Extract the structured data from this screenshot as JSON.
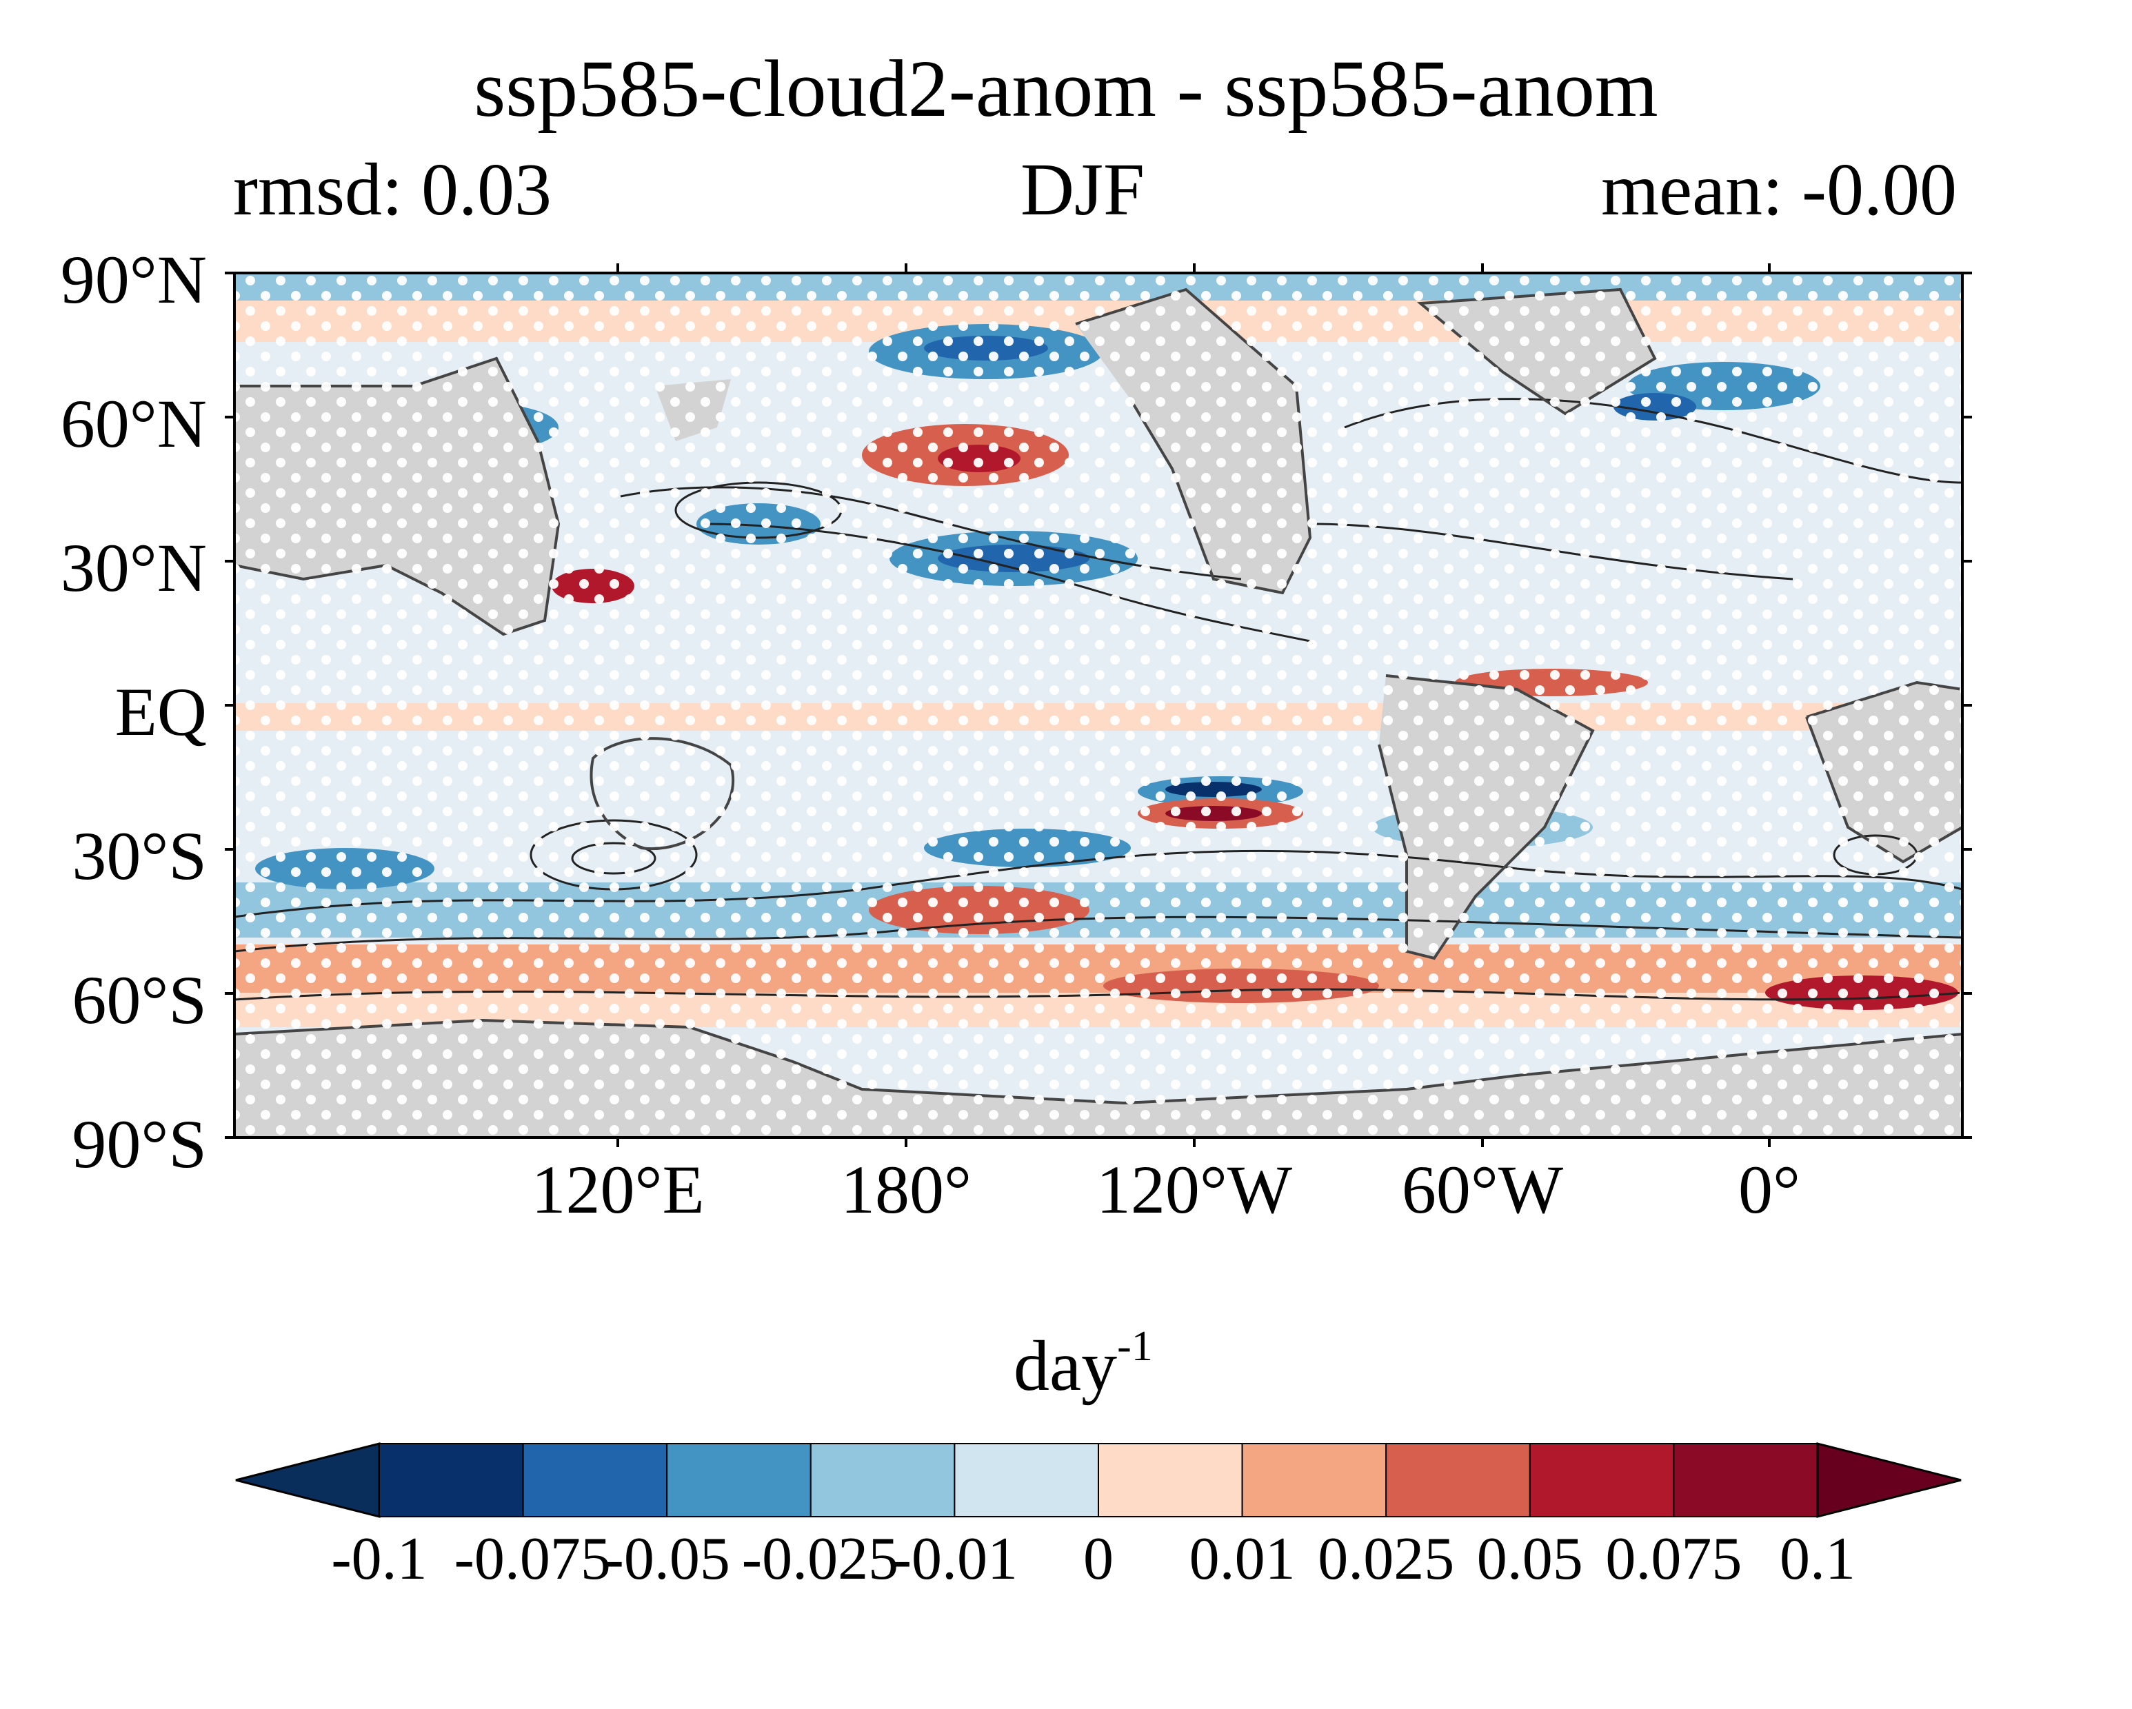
{
  "title": "ssp585-cloud2-anom - ssp585-anom",
  "subtitle": {
    "left": "rmsd: 0.03",
    "center": "DJF",
    "right": "mean: -0.00"
  },
  "map": {
    "projection": "PlateCarree, central longitude 150°E (lon -30 to 330)",
    "lat_ticks": [
      "90°N",
      "60°N",
      "30°N",
      "EQ",
      "30°S",
      "60°S",
      "90°S"
    ],
    "lon_ticks": [
      "120°E",
      "180°",
      "120°W",
      "60°W",
      "0°"
    ],
    "land_color": "#d3d3d3",
    "field": "anomaly difference (filled contours, diverging blue-red), black contour lines, white stippling for significance",
    "features": [
      {
        "name": "strong negative",
        "region": "South Pacific ~25°S,125°W",
        "sign": "negative"
      },
      {
        "name": "strong positive",
        "region": "South Pacific ~28°S,125°W",
        "sign": "positive"
      },
      {
        "name": "positive",
        "region": "North Pacific ~50°N,160°W",
        "sign": "positive"
      },
      {
        "name": "negative band",
        "region": "North Pacific ~30°N",
        "sign": "negative"
      },
      {
        "name": "positive band",
        "region": "Southern Ocean ~55°S",
        "sign": "positive"
      }
    ]
  },
  "colorbar": {
    "label": "day",
    "label_superscript": "-1",
    "ticks": [
      "-0.1",
      "-0.075",
      "-0.05",
      "-0.025",
      "-0.01",
      "0",
      "0.01",
      "0.025",
      "0.05",
      "0.075",
      "0.1"
    ],
    "colors": [
      "#0a2e5c",
      "#08306b",
      "#2166ac",
      "#4393c3",
      "#92c5de",
      "#d1e5f0",
      "#fddbc7",
      "#f4a582",
      "#d6604d",
      "#b2182b",
      "#8b0a26",
      "#67001f"
    ],
    "extend": "both"
  }
}
